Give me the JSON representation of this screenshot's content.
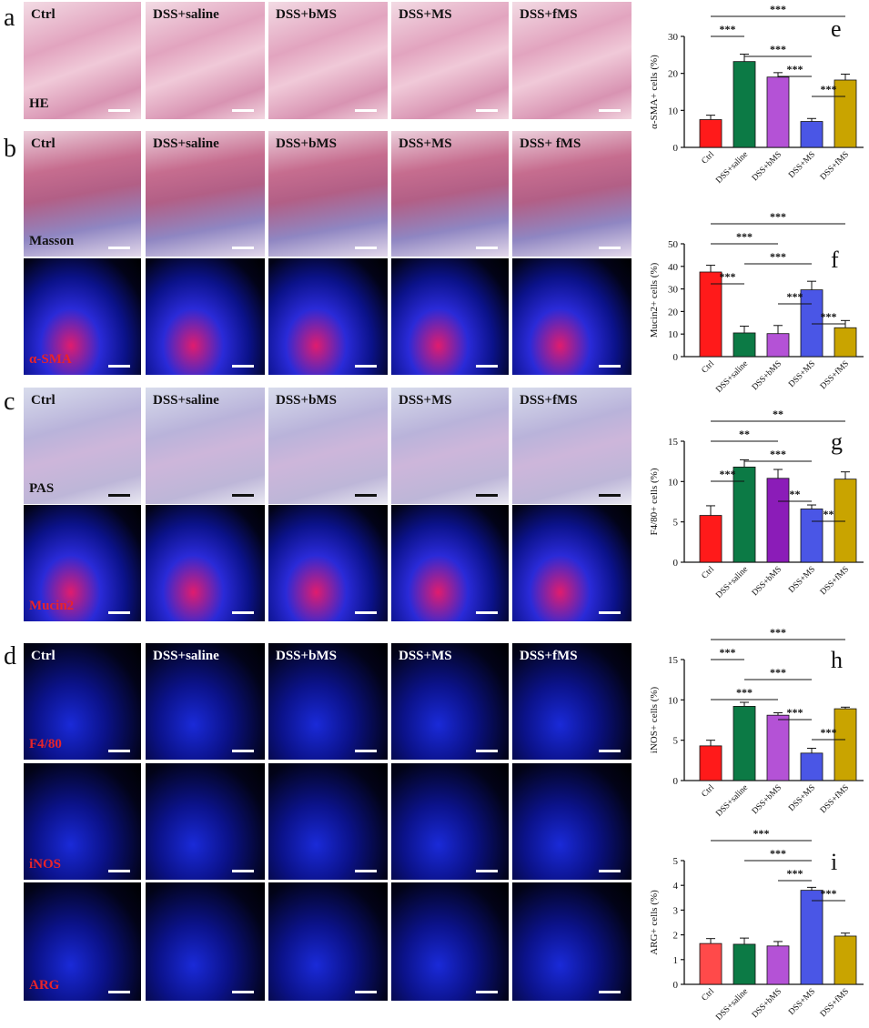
{
  "panel_letters": {
    "a": "a",
    "b": "b",
    "c": "c",
    "d": "d",
    "e": "e",
    "f": "f",
    "g": "g",
    "h": "h",
    "i": "i"
  },
  "groups": [
    "Ctrl",
    "DSS+saline",
    "DSS+bMS",
    "DSS+MS",
    "DSS+fMS"
  ],
  "masson_groups": [
    "Ctrl",
    "DSS+saline",
    "DSS+bMS",
    "DSS+MS",
    "DSS+ fMS"
  ],
  "row_labels": {
    "he": "HE",
    "masson": "Masson",
    "asma": "α-SMA",
    "pas": "PAS",
    "mucin2": "Mucin2",
    "f480": "F4/80",
    "inos": "iNOS",
    "arg": "ARG"
  },
  "colors": {
    "ctrl": "#ff1a1a",
    "saline": "#0c7a45",
    "bms": "#b452d6",
    "ms": "#4a56e6",
    "fms": "#c9a400"
  },
  "chart_data": [
    {
      "id": "e",
      "type": "bar",
      "categories": [
        "Ctrl",
        "DSS+saline",
        "DSS+bMS",
        "DSS+MS",
        "DSS+fMS"
      ],
      "values": [
        7.5,
        23.2,
        19.0,
        7.0,
        18.2
      ],
      "errors": [
        1.2,
        2.0,
        1.2,
        0.8,
        1.6
      ],
      "ylabel": "α-SMA+ cells (%)",
      "ylim": [
        0,
        30
      ],
      "yticks": [
        "0",
        "10",
        "20",
        "30"
      ],
      "colors": [
        "#ff1a1a",
        "#0c7a45",
        "#b452d6",
        "#4a56e6",
        "#c9a400"
      ],
      "sig": [
        {
          "from": 0,
          "to": 4,
          "label": "***"
        },
        {
          "from": 0,
          "to": 1,
          "label": "***"
        },
        {
          "from": 1,
          "to": 3,
          "label": "***"
        },
        {
          "from": 2,
          "to": 3,
          "label": "***"
        },
        {
          "from": 3,
          "to": 4,
          "label": "***"
        }
      ]
    },
    {
      "id": "f",
      "type": "bar",
      "categories": [
        "Ctrl",
        "DSS+saline",
        "DSS+bMS",
        "DSS+MS",
        "DSS+fMS"
      ],
      "values": [
        37.5,
        10.5,
        10.2,
        29.6,
        12.8
      ],
      "errors": [
        3.0,
        3.0,
        3.6,
        3.8,
        3.2
      ],
      "ylabel": "Mucin2+ cells (%)",
      "ylim": [
        0,
        50
      ],
      "yticks": [
        "0",
        "10",
        "20",
        "30",
        "40",
        "50"
      ],
      "colors": [
        "#ff1a1a",
        "#0c7a45",
        "#b452d6",
        "#4a56e6",
        "#c9a400"
      ],
      "sig": [
        {
          "from": 0,
          "to": 4,
          "label": "***"
        },
        {
          "from": 0,
          "to": 2,
          "label": "***"
        },
        {
          "from": 1,
          "to": 3,
          "label": "***"
        },
        {
          "from": 0,
          "to": 1,
          "label": "***"
        },
        {
          "from": 2,
          "to": 3,
          "label": "***"
        },
        {
          "from": 3,
          "to": 4,
          "label": "***"
        }
      ]
    },
    {
      "id": "g",
      "type": "bar",
      "categories": [
        "Ctrl",
        "DSS+saline",
        "DSS+bMS",
        "DSS+MS",
        "DSS+fMS"
      ],
      "values": [
        5.8,
        11.8,
        10.4,
        6.6,
        10.3
      ],
      "errors": [
        1.2,
        0.9,
        1.1,
        0.5,
        0.9
      ],
      "ylabel": "F4/80+ cells (%)",
      "ylim": [
        0,
        15
      ],
      "yticks": [
        "0",
        "5",
        "10",
        "15"
      ],
      "colors": [
        "#ff1a1a",
        "#0c7a45",
        "#8b1cb8",
        "#4a56e6",
        "#c9a400"
      ],
      "sig": [
        {
          "from": 0,
          "to": 4,
          "label": "**"
        },
        {
          "from": 0,
          "to": 2,
          "label": "**"
        },
        {
          "from": 1,
          "to": 3,
          "label": "***"
        },
        {
          "from": 0,
          "to": 1,
          "label": "***"
        },
        {
          "from": 2,
          "to": 3,
          "label": "**"
        },
        {
          "from": 3,
          "to": 4,
          "label": "**"
        }
      ]
    },
    {
      "id": "h",
      "type": "bar",
      "categories": [
        "Ctrl",
        "DSS+saline",
        "DSS+bMS",
        "DSS+MS",
        "DSS+fMS"
      ],
      "values": [
        4.3,
        9.2,
        8.1,
        3.4,
        8.9
      ],
      "errors": [
        0.7,
        0.5,
        0.3,
        0.6,
        0.2
      ],
      "ylabel": "iNOS+ cells (%)",
      "ylim": [
        0,
        15
      ],
      "yticks": [
        "0",
        "5",
        "10",
        "15"
      ],
      "colors": [
        "#ff1a1a",
        "#0c7a45",
        "#b452d6",
        "#4a56e6",
        "#c9a400"
      ],
      "sig": [
        {
          "from": 0,
          "to": 4,
          "label": "***"
        },
        {
          "from": 0,
          "to": 1,
          "label": "***"
        },
        {
          "from": 1,
          "to": 3,
          "label": "***"
        },
        {
          "from": 0,
          "to": 2,
          "label": "***"
        },
        {
          "from": 2,
          "to": 3,
          "label": "***"
        },
        {
          "from": 3,
          "to": 4,
          "label": "***"
        }
      ]
    },
    {
      "id": "i",
      "type": "bar",
      "categories": [
        "Ctrl",
        "DSS+saline",
        "DSS+bMS",
        "DSS+MS",
        "DSS+fMS"
      ],
      "values": [
        1.65,
        1.62,
        1.55,
        3.8,
        1.95
      ],
      "errors": [
        0.2,
        0.25,
        0.18,
        0.12,
        0.12
      ],
      "ylabel": "ARG+ cells (%)",
      "ylim": [
        0,
        5
      ],
      "yticks": [
        "0",
        "1",
        "2",
        "3",
        "4",
        "5"
      ],
      "colors": [
        "#ff4a4a",
        "#0c7a45",
        "#b452d6",
        "#4a56e6",
        "#c9a400"
      ],
      "sig": [
        {
          "from": 0,
          "to": 3,
          "label": "***"
        },
        {
          "from": 1,
          "to": 3,
          "label": "***"
        },
        {
          "from": 2,
          "to": 3,
          "label": "***"
        },
        {
          "from": 3,
          "to": 4,
          "label": "***"
        }
      ]
    }
  ]
}
